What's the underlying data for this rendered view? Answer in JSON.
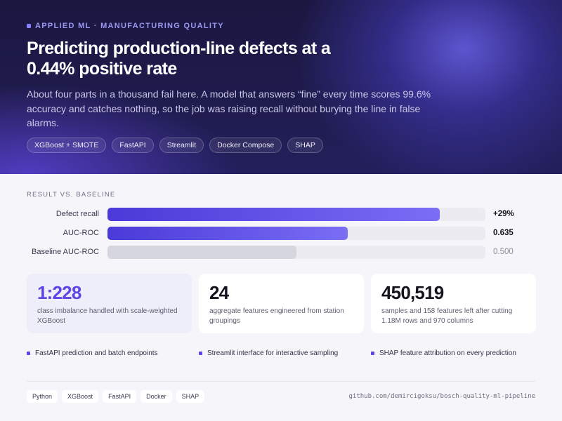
{
  "hero": {
    "eyebrow": "APPLIED ML · MANUFACTURING QUALITY",
    "title": "Predicting production-line defects at a 0.44% positive rate",
    "lead": "About four parts in a thousand fail here. A model that answers “fine” every time scores 99.6% accuracy and catches nothing, so the job was raising recall without burying the line in false alarms.",
    "chips": [
      "XGBoost + SMOTE",
      "FastAPI",
      "Streamlit",
      "Docker Compose",
      "SHAP"
    ]
  },
  "results": {
    "section_label": "RESULT VS. BASELINE",
    "bars": [
      {
        "label": "Defect recall",
        "value_text": "+29%",
        "fill_fraction": 0.88,
        "style": "primary"
      },
      {
        "label": "AUC-ROC",
        "value_text": "0.635",
        "fill_fraction": 0.635,
        "style": "primary"
      },
      {
        "label": "Baseline AUC-ROC",
        "value_text": "0.500",
        "fill_fraction": 0.5,
        "style": "baseline"
      }
    ]
  },
  "stats": [
    {
      "number": "1:228",
      "desc": "class imbalance handled with scale-weighted XGBoost",
      "accent": true
    },
    {
      "number": "24",
      "desc": "aggregate features engineered from station groupings",
      "accent": false
    },
    {
      "number": "450,519",
      "desc": "samples and 158 features left after cutting 1.18M rows and 970 columns",
      "accent": false
    }
  ],
  "features": [
    "FastAPI prediction and batch endpoints",
    "Streamlit interface for interactive sampling",
    "SHAP feature attribution on every prediction"
  ],
  "footer": {
    "tags": [
      "Python",
      "XGBoost",
      "FastAPI",
      "Docker",
      "SHAP"
    ],
    "repo": "github.com/demircigoksu/bosch-quality-ml-pipeline"
  },
  "colors": {
    "accent": "#5a45e6",
    "hero_bg": "#1f1c4e",
    "bar_primary": "#4a3ad8",
    "bar_baseline": "#d6d6de"
  }
}
